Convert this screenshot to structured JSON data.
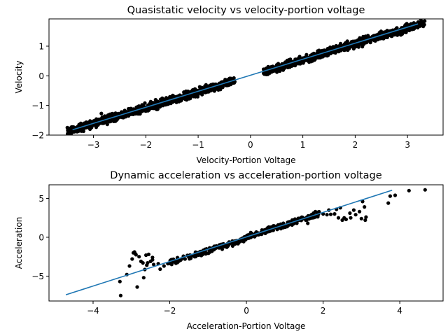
{
  "chart_data": [
    {
      "type": "scatter",
      "title": "Quasistatic velocity vs velocity-portion voltage",
      "xlabel": "Velocity-Portion Voltage",
      "ylabel": "Velocity",
      "xlim": [
        -3.85,
        3.68
      ],
      "ylim": [
        -2.0,
        1.92
      ],
      "xticks": [
        -3,
        -2,
        -1,
        0,
        1,
        2,
        3
      ],
      "xtick_labels": [
        "−3",
        "−2",
        "−1",
        "0",
        "1",
        "2",
        "3"
      ],
      "yticks": [
        -2,
        -1,
        0,
        1
      ],
      "ytick_labels": [
        "−2",
        "−1",
        "0",
        "1"
      ],
      "grid": false,
      "series": [
        {
          "name": "measured",
          "kind": "scatter",
          "color": "#000000",
          "band": {
            "segments": [
              [
                -3.5,
                -0.3
              ],
              [
                0.25,
                3.33
              ]
            ],
            "slope": 0.54,
            "intercept": 0.0,
            "spread": 0.11
          },
          "points": [
            [
              -3.5,
              -1.75
            ],
            [
              -3.4,
              -1.8
            ],
            [
              -3.3,
              -1.78
            ],
            [
              -3.2,
              -1.68
            ],
            [
              -3.1,
              -1.62
            ],
            [
              -3.0,
              -1.6
            ],
            [
              -2.9,
              -1.58
            ],
            [
              -2.85,
              -1.27
            ],
            [
              -2.8,
              -1.52
            ],
            [
              -2.7,
              -1.45
            ],
            [
              -2.6,
              -1.42
            ],
            [
              -2.5,
              -1.38
            ],
            [
              -2.4,
              -1.3
            ],
            [
              -2.3,
              -1.26
            ],
            [
              -2.2,
              -1.2
            ],
            [
              -2.1,
              -1.14
            ],
            [
              -2.0,
              -1.1
            ],
            [
              -1.9,
              -1.02
            ],
            [
              -1.8,
              -0.98
            ],
            [
              -1.7,
              -0.92
            ],
            [
              -1.6,
              -0.87
            ],
            [
              -1.5,
              -0.8
            ],
            [
              -1.4,
              -0.76
            ],
            [
              -1.3,
              -0.7
            ],
            [
              -1.2,
              -0.65
            ],
            [
              -1.1,
              -0.6
            ],
            [
              -1.0,
              -0.54
            ],
            [
              -0.9,
              -0.5
            ],
            [
              -0.8,
              -0.44
            ],
            [
              -0.7,
              -0.39
            ],
            [
              -0.6,
              -0.32
            ],
            [
              -0.5,
              -0.28
            ],
            [
              -0.4,
              -0.22
            ],
            [
              -0.3,
              -0.2
            ],
            [
              0.25,
              0.22
            ],
            [
              0.3,
              0.25
            ],
            [
              0.4,
              0.28
            ],
            [
              0.5,
              0.32
            ],
            [
              0.6,
              0.36
            ],
            [
              0.7,
              0.4
            ],
            [
              0.8,
              0.45
            ],
            [
              0.9,
              0.5
            ],
            [
              1.0,
              0.55
            ],
            [
              1.1,
              0.6
            ],
            [
              1.2,
              0.66
            ],
            [
              1.3,
              0.71
            ],
            [
              1.4,
              0.76
            ],
            [
              1.5,
              0.82
            ],
            [
              1.6,
              0.87
            ],
            [
              1.7,
              0.92
            ],
            [
              1.8,
              0.98
            ],
            [
              1.9,
              1.03
            ],
            [
              2.0,
              1.08
            ],
            [
              2.1,
              1.14
            ],
            [
              2.2,
              1.19
            ],
            [
              2.3,
              1.24
            ],
            [
              2.4,
              1.3
            ],
            [
              2.5,
              1.35
            ],
            [
              2.6,
              1.41
            ],
            [
              2.7,
              1.46
            ],
            [
              2.8,
              1.52
            ],
            [
              2.9,
              1.57
            ],
            [
              3.0,
              1.62
            ],
            [
              3.1,
              1.67
            ],
            [
              3.2,
              1.7
            ],
            [
              3.3,
              1.68
            ]
          ]
        },
        {
          "name": "fit",
          "kind": "line",
          "color": "#1f77b4",
          "x": [
            -3.4,
            3.2
          ],
          "y": [
            -1.82,
            1.75
          ]
        }
      ]
    },
    {
      "type": "scatter",
      "title": "Dynamic acceleration vs acceleration-portion voltage",
      "xlabel": "Acceleration-Portion Voltage",
      "ylabel": "Acceleration",
      "xlim": [
        -5.15,
        5.13
      ],
      "ylim": [
        -8.2,
        6.75
      ],
      "xticks": [
        -4,
        -2,
        0,
        2,
        4
      ],
      "xtick_labels": [
        "−4",
        "−2",
        "0",
        "2",
        "4"
      ],
      "yticks": [
        -5,
        0,
        5
      ],
      "ytick_labels": [
        "−5",
        "0",
        "5"
      ],
      "grid": false,
      "series": [
        {
          "name": "measured",
          "kind": "scatter",
          "color": "#000000",
          "points": [
            [
              -3.28,
              -7.5
            ],
            [
              -3.3,
              -5.7
            ],
            [
              -3.12,
              -4.8
            ],
            [
              -3.05,
              -3.7
            ],
            [
              -2.98,
              -2.8
            ],
            [
              -2.95,
              -2.0
            ],
            [
              -2.92,
              -1.9
            ],
            [
              -2.9,
              -2.1
            ],
            [
              -2.88,
              -2.25
            ],
            [
              -2.85,
              -6.4
            ],
            [
              -2.8,
              -2.5
            ],
            [
              -2.75,
              -3.1
            ],
            [
              -2.7,
              -3.3
            ],
            [
              -2.68,
              -5.2
            ],
            [
              -2.65,
              -4.15
            ],
            [
              -2.62,
              -2.3
            ],
            [
              -2.6,
              -3.6
            ],
            [
              -2.58,
              -3.3
            ],
            [
              -2.55,
              -2.2
            ],
            [
              -2.5,
              -3.1
            ],
            [
              -2.45,
              -2.6
            ],
            [
              -2.45,
              -2.9
            ],
            [
              -2.42,
              -3.5
            ],
            [
              -2.3,
              -3.4
            ],
            [
              -2.25,
              -4.1
            ],
            [
              -2.15,
              -3.7
            ],
            [
              -2.05,
              -3.4
            ],
            [
              -1.95,
              -3.5
            ],
            [
              -1.85,
              -3.2
            ],
            [
              -1.75,
              -3.0
            ],
            [
              -1.7,
              -2.8
            ],
            [
              -1.6,
              -2.8
            ],
            [
              -1.5,
              -2.6
            ],
            [
              -1.45,
              -2.7
            ],
            [
              -1.35,
              -2.5
            ],
            [
              -1.25,
              -2.3
            ],
            [
              -1.15,
              -2.2
            ],
            [
              -1.05,
              -2.1
            ],
            [
              -1.0,
              -2.05
            ],
            [
              -0.95,
              -1.9
            ],
            [
              -0.9,
              -1.8
            ],
            [
              -0.85,
              -1.6
            ],
            [
              -0.8,
              -1.4
            ],
            [
              -0.75,
              -1.3
            ],
            [
              -0.7,
              -1.2
            ],
            [
              -0.6,
              -1.1
            ],
            [
              -0.55,
              -1.0
            ],
            [
              -0.5,
              -0.95
            ],
            [
              -0.45,
              -0.8
            ],
            [
              -0.4,
              -0.75
            ],
            [
              -0.35,
              -0.7
            ],
            [
              -0.3,
              -0.55
            ],
            [
              -0.25,
              -0.45
            ],
            [
              -0.2,
              -0.4
            ],
            [
              -0.15,
              -0.25
            ],
            [
              -0.1,
              -0.1
            ],
            [
              -0.05,
              0.05
            ],
            [
              0.0,
              0.15
            ],
            [
              0.02,
              0.25
            ],
            [
              0.05,
              0.3
            ],
            [
              0.1,
              0.2
            ],
            [
              0.15,
              0.3
            ],
            [
              0.2,
              0.35
            ],
            [
              0.25,
              0.4
            ],
            [
              0.3,
              0.45
            ],
            [
              0.35,
              0.5
            ],
            [
              0.4,
              0.55
            ],
            [
              0.45,
              0.6
            ],
            [
              0.5,
              0.65
            ],
            [
              0.55,
              0.7
            ],
            [
              0.6,
              0.75
            ],
            [
              0.65,
              0.85
            ],
            [
              0.7,
              0.9
            ],
            [
              0.8,
              1.0
            ],
            [
              0.9,
              1.1
            ],
            [
              1.0,
              1.3
            ],
            [
              1.05,
              1.5
            ],
            [
              1.1,
              1.7
            ],
            [
              1.15,
              1.85
            ],
            [
              1.2,
              2.0
            ],
            [
              1.25,
              2.1
            ],
            [
              1.3,
              2.2
            ],
            [
              1.35,
              2.25
            ],
            [
              1.4,
              2.3
            ],
            [
              1.45,
              2.35
            ],
            [
              1.5,
              2.4
            ],
            [
              1.55,
              2.2
            ],
            [
              1.6,
              1.8
            ],
            [
              1.65,
              2.7
            ],
            [
              1.7,
              2.9
            ],
            [
              1.75,
              3.1
            ],
            [
              1.8,
              3.3
            ],
            [
              1.85,
              3.2
            ],
            [
              2.0,
              3.0
            ],
            [
              2.1,
              2.9
            ],
            [
              2.15,
              3.5
            ],
            [
              2.2,
              2.95
            ],
            [
              2.3,
              3.0
            ],
            [
              2.35,
              3.6
            ],
            [
              2.4,
              2.5
            ],
            [
              2.45,
              3.8
            ],
            [
              2.5,
              2.2
            ],
            [
              2.55,
              2.5
            ],
            [
              2.6,
              2.3
            ],
            [
              2.7,
              3.1
            ],
            [
              2.72,
              2.5
            ],
            [
              2.8,
              3.5
            ],
            [
              2.85,
              2.9
            ],
            [
              2.95,
              3.3
            ],
            [
              3.0,
              2.4
            ],
            [
              3.03,
              4.6
            ],
            [
              3.08,
              3.9
            ],
            [
              3.1,
              2.2
            ],
            [
              3.12,
              2.6
            ],
            [
              3.7,
              4.4
            ],
            [
              3.75,
              5.3
            ],
            [
              3.88,
              5.4
            ],
            [
              4.24,
              6.0
            ],
            [
              4.66,
              6.1
            ]
          ]
        },
        {
          "name": "fit",
          "kind": "line",
          "color": "#1f77b4",
          "x": [
            -4.71,
            3.8
          ],
          "y": [
            -7.4,
            6.05
          ]
        }
      ]
    }
  ]
}
